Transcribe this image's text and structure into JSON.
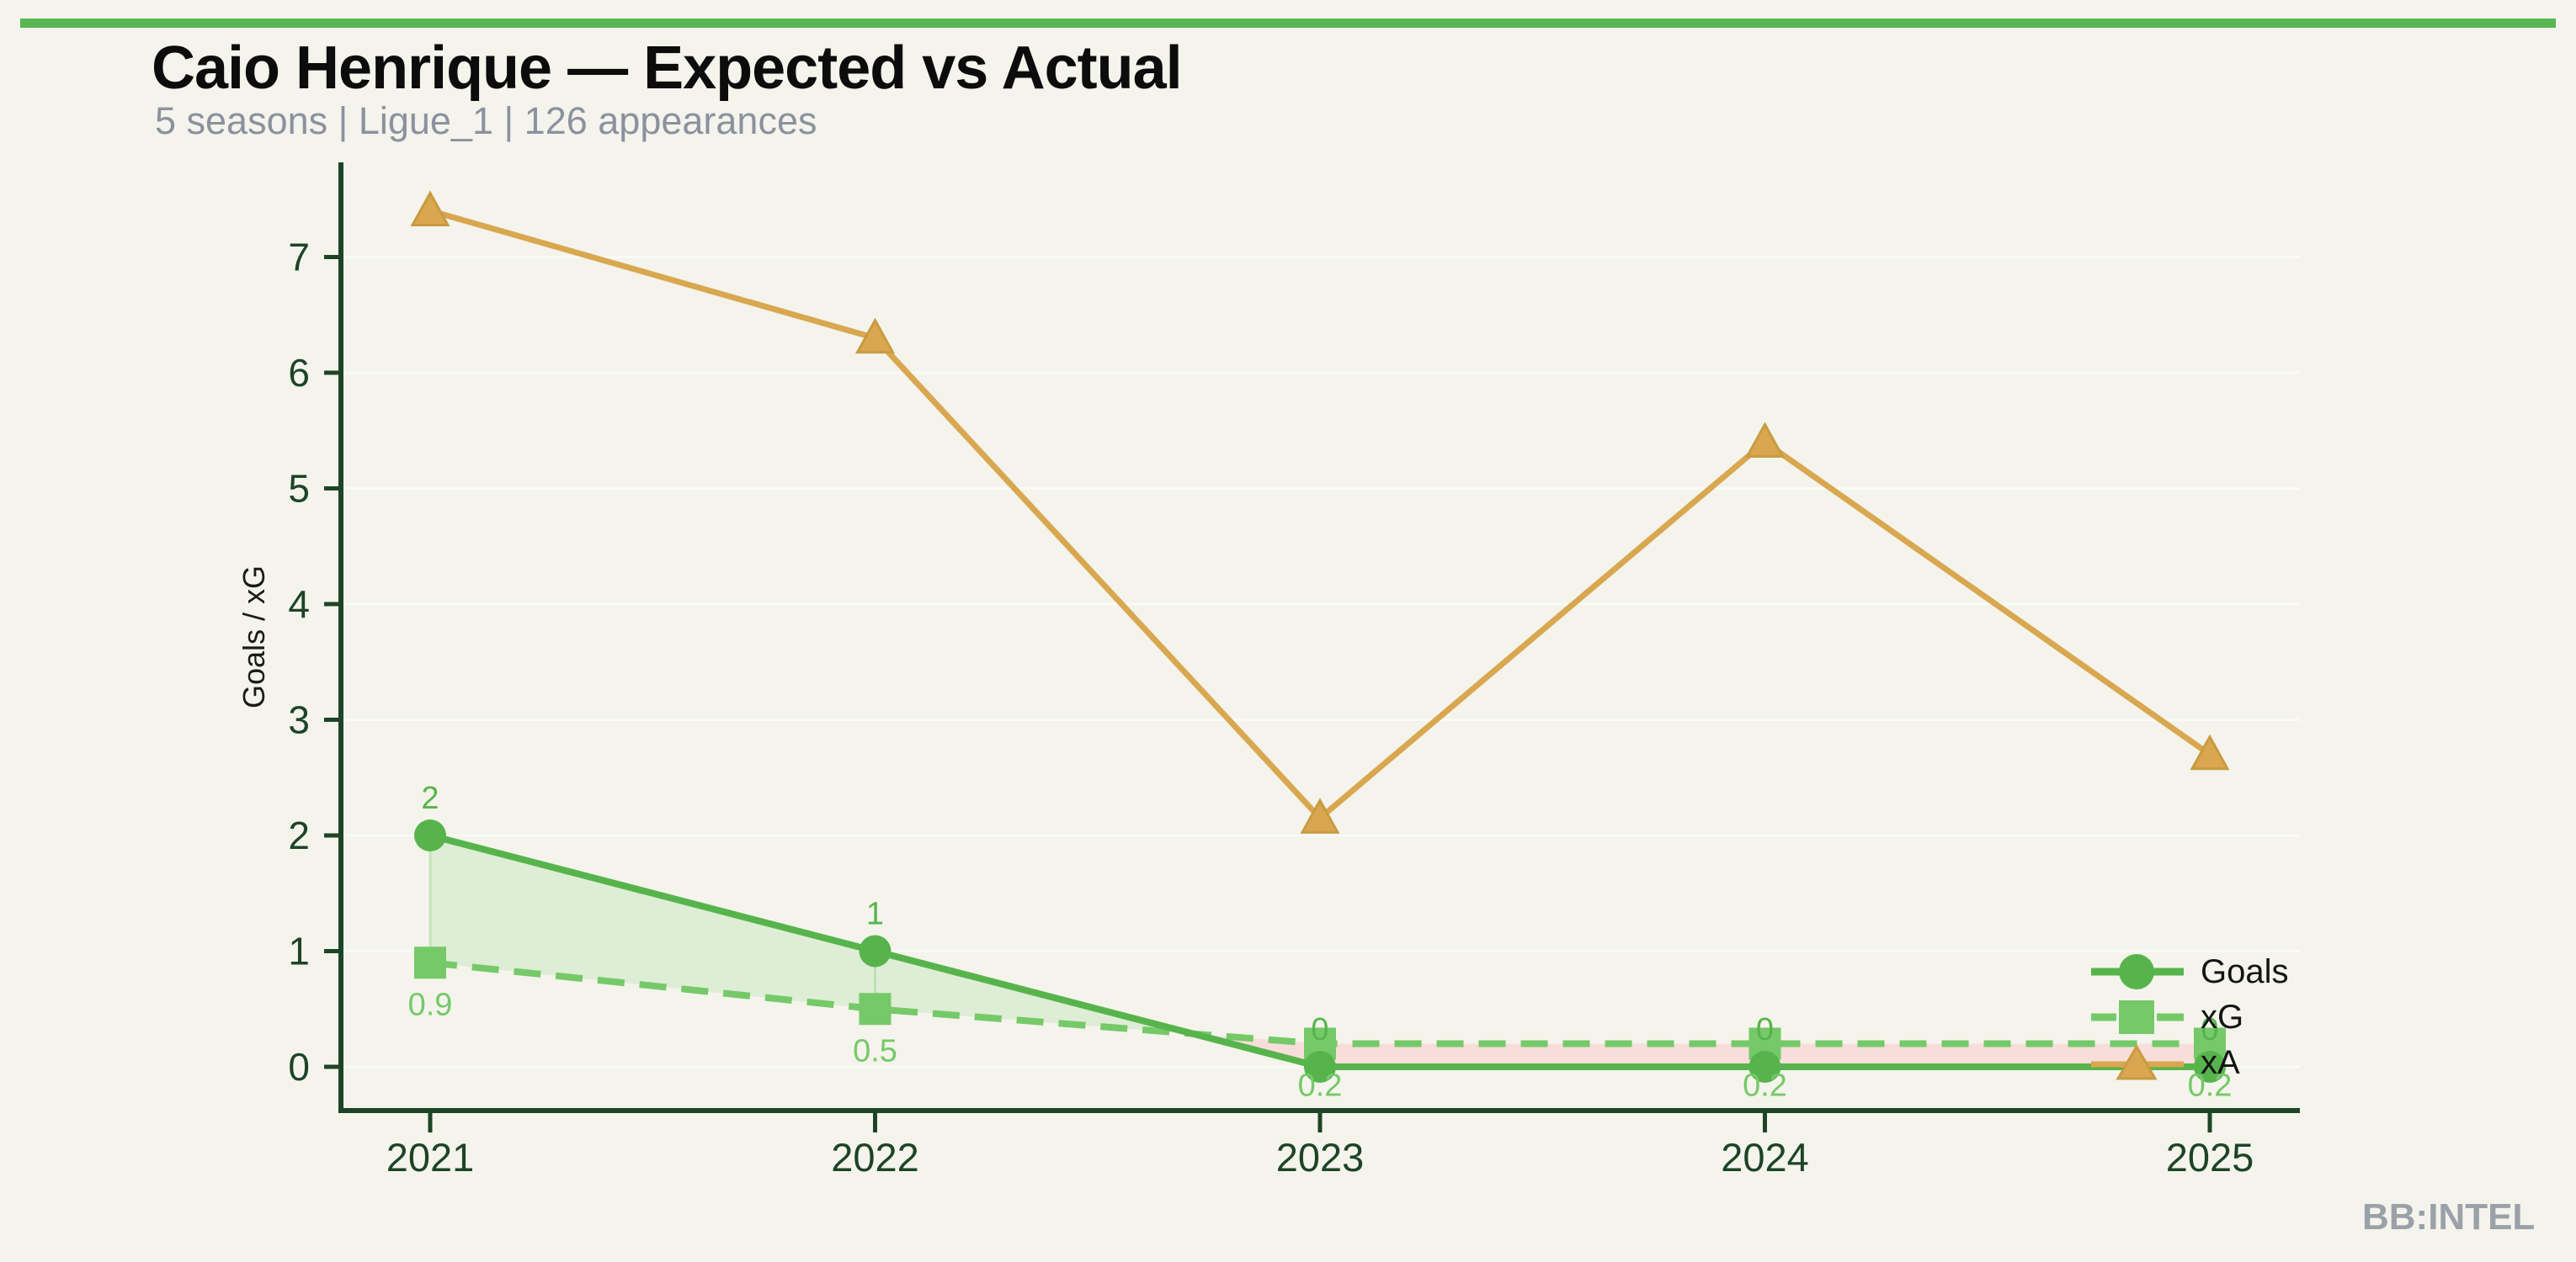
{
  "header": {
    "title": "Caio Henrique — Expected vs Actual",
    "subtitle": "5 seasons | Ligue_1 | 126 appearances"
  },
  "footer": {
    "watermark": "BB:INTEL"
  },
  "colors": {
    "background": "#f4f4ec",
    "topbar": "#58b653",
    "goals": "#57b44c",
    "xg": "#76c968",
    "xa": "#d9a750",
    "xa_edge": "#c99b41",
    "fill_green": "#dcecd3",
    "fill_pink": "#f7dcd8",
    "axis": "#1d4426",
    "gridline": "rgba(255,255,255,0.55)",
    "title": "#0c0c0c",
    "subtitle": "#8b919e",
    "watermark": "#9ba1a9"
  },
  "chart_data": {
    "type": "line",
    "title": "Caio Henrique — Expected vs Actual",
    "subtitle": "5 seasons | Ligue_1 | 126 appearances",
    "x": [
      2021,
      2022,
      2023,
      2024,
      2025
    ],
    "xlabel": "",
    "ylabel": "Goals / xG",
    "yticks": [
      0,
      1,
      2,
      3,
      4,
      5,
      6,
      7
    ],
    "ylim": [
      -0.4,
      7.8
    ],
    "grid": "faint-horizontal",
    "legend_position": "inside-lower-right",
    "series": [
      {
        "name": "Goals",
        "marker": "circle",
        "line": "solid",
        "color_key": "goals",
        "values": [
          2,
          1,
          0,
          0,
          0
        ],
        "point_labels": [
          "2",
          "1",
          "0",
          "0",
          "0"
        ],
        "label_side": "above"
      },
      {
        "name": "xG",
        "marker": "square",
        "line": "dashed",
        "color_key": "xg",
        "values": [
          0.9,
          0.5,
          0.2,
          0.2,
          0.2
        ],
        "point_labels": [
          "0.9",
          "0.5",
          "0.2",
          "0.2",
          "0.2"
        ],
        "label_side": "below"
      },
      {
        "name": "xA",
        "marker": "triangle",
        "line": "solid",
        "color_key": "xa",
        "values": [
          7.4,
          6.3,
          2.15,
          5.4,
          2.7
        ],
        "point_labels": [],
        "label_side": "none"
      }
    ],
    "fill_between": {
      "series": [
        "Goals",
        "xG"
      ],
      "above_color_key": "fill_green",
      "below_color_key": "fill_pink"
    }
  }
}
